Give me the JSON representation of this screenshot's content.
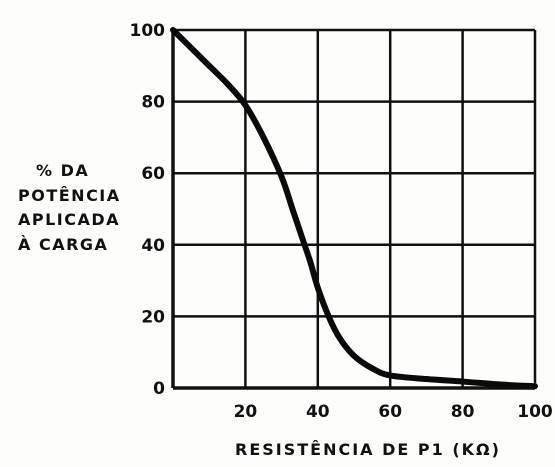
{
  "chart_data": {
    "type": "line",
    "title": "",
    "xlabel": "RESISTÊNCIA DE P1 (KΩ)",
    "ylabel_lines": [
      "%  DA",
      "POTÊNCIA",
      "APLICADA",
      "À  CARGA"
    ],
    "xlim": [
      0,
      100
    ],
    "ylim": [
      0,
      100
    ],
    "x_ticks": [
      20,
      40,
      60,
      80,
      100
    ],
    "y_ticks": [
      0,
      20,
      40,
      60,
      80,
      100
    ],
    "grid": true,
    "series": [
      {
        "x": [
          0,
          5,
          10,
          15,
          20,
          25,
          30,
          33,
          36,
          38,
          40,
          43,
          46,
          50,
          55,
          60,
          70,
          80,
          90,
          100
        ],
        "y": [
          100,
          95,
          90,
          85,
          79,
          70,
          59,
          50,
          41,
          35,
          28,
          20,
          14,
          9,
          5.5,
          3.5,
          2.5,
          1.8,
          1,
          0.5
        ]
      }
    ],
    "colors": {
      "curve": "#0a0a0a",
      "grid": "#111111",
      "background": "#fdfdfb"
    }
  }
}
